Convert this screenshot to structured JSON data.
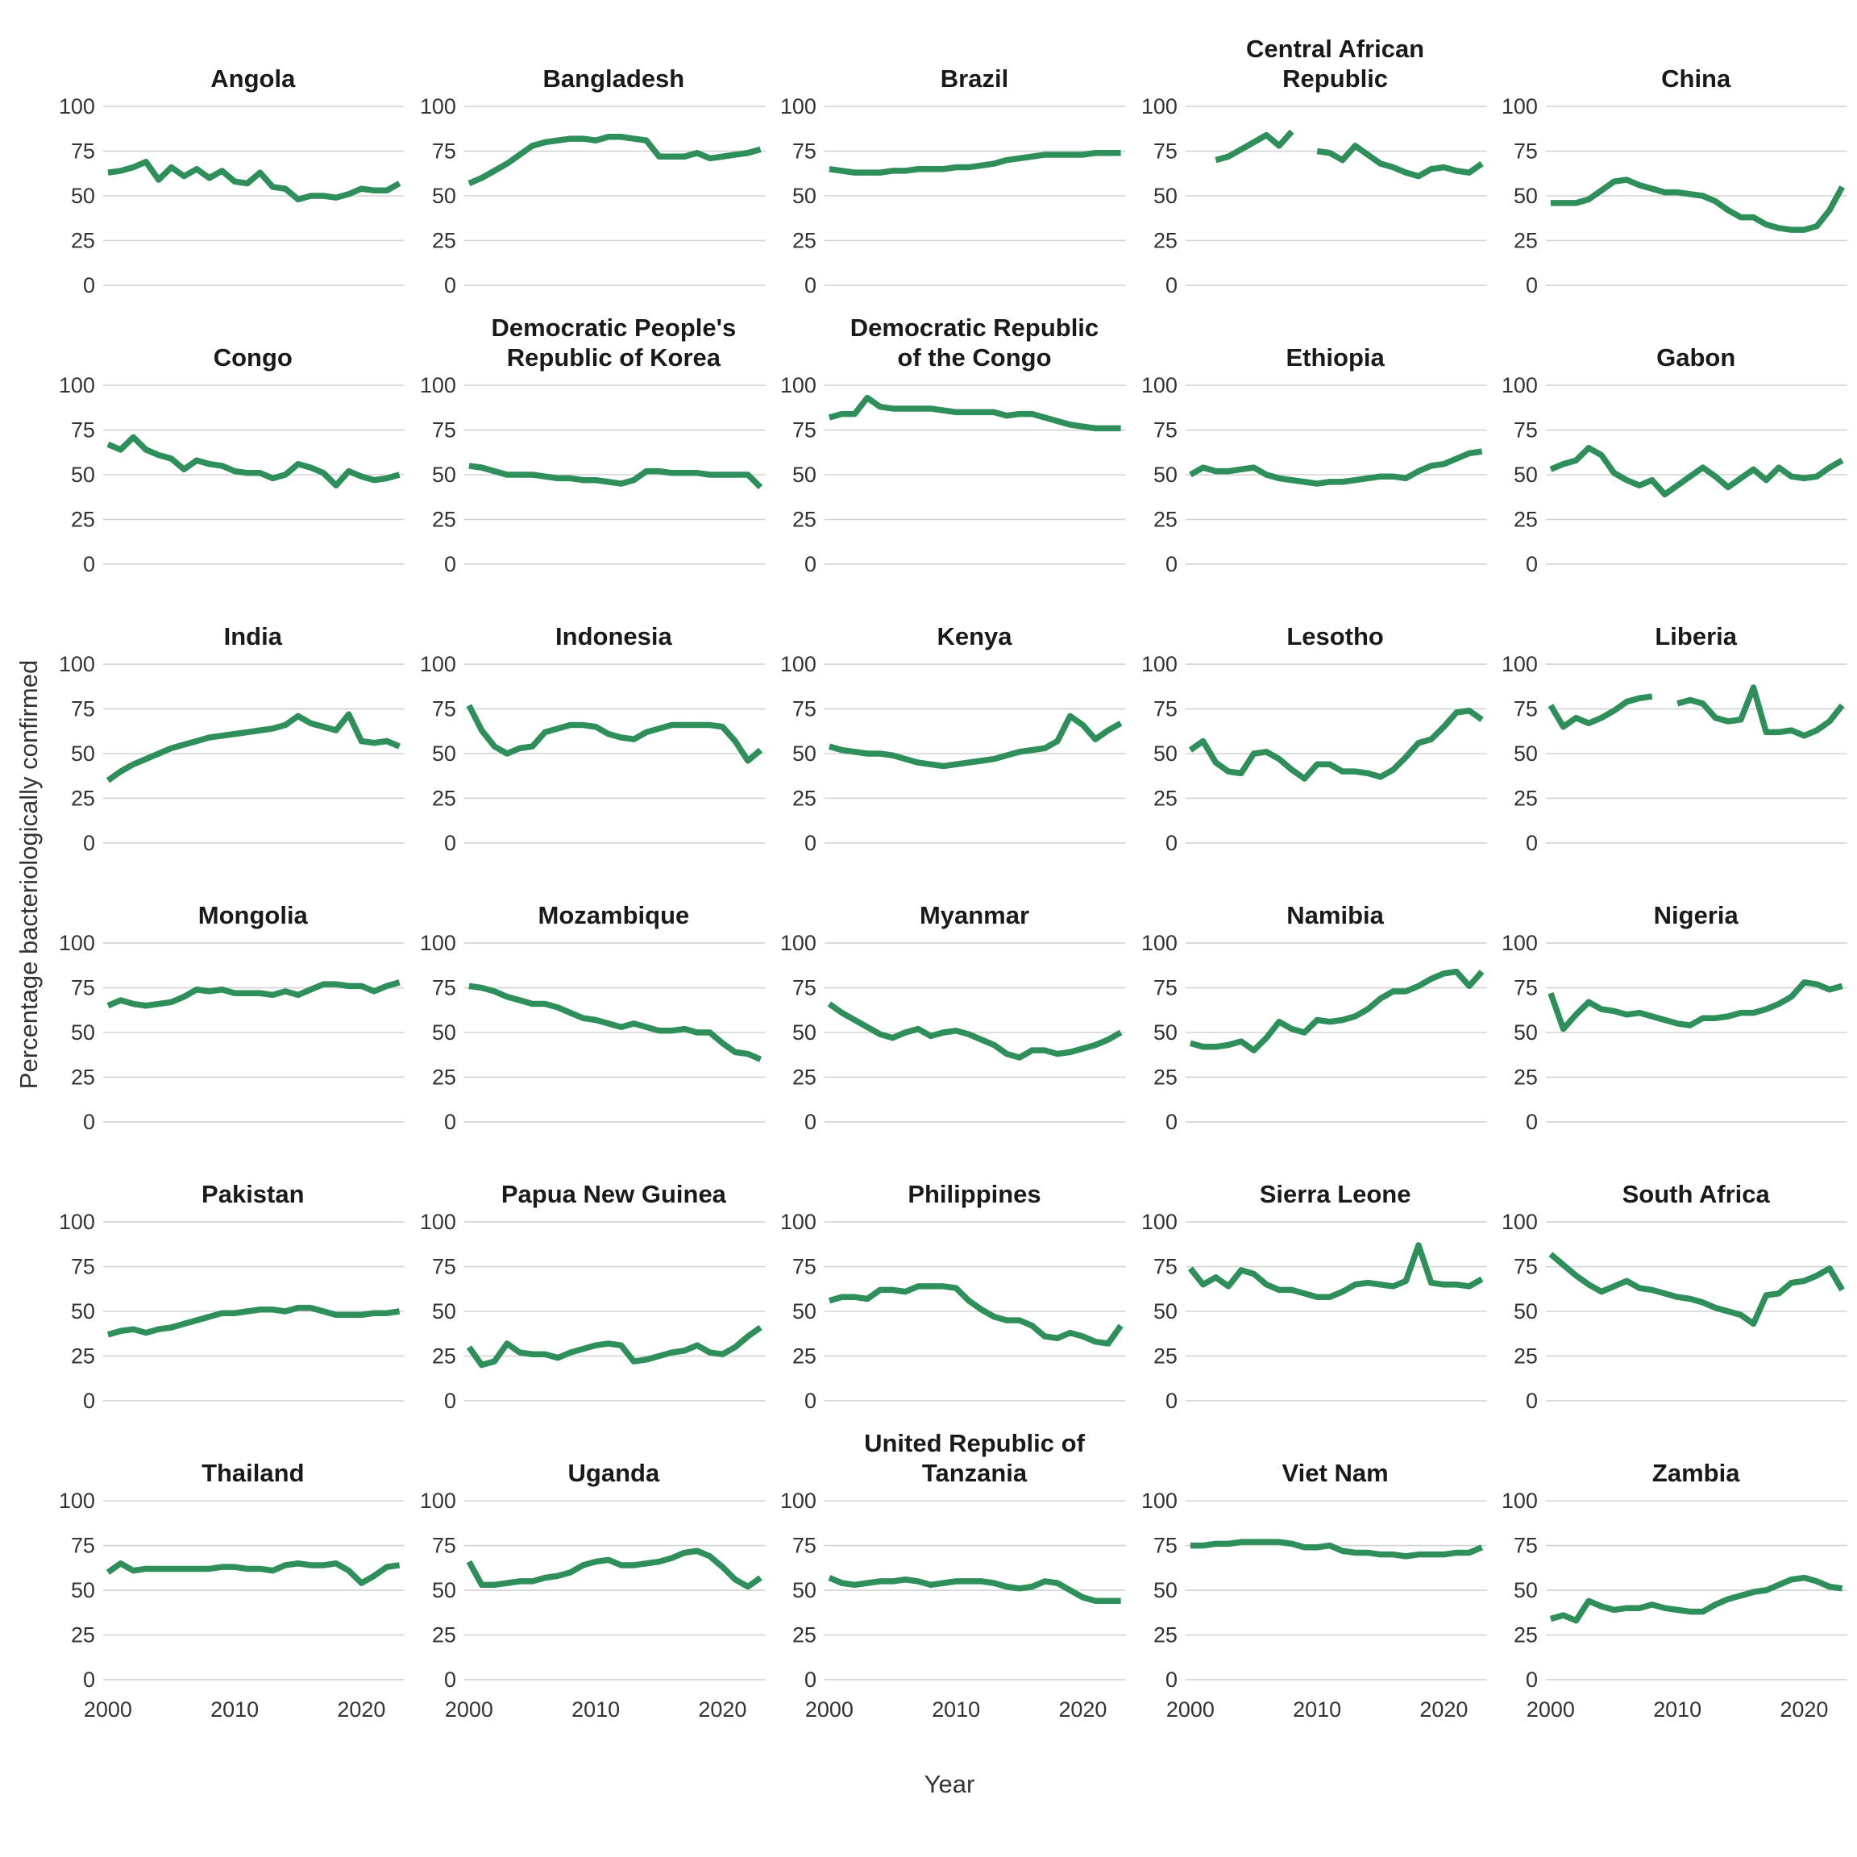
{
  "chart_data": {
    "type": "line",
    "title": "",
    "xlabel": "Year",
    "ylabel": "Percentage bacteriologically confirmed",
    "xlim": [
      2000,
      2023
    ],
    "ylim": [
      0,
      100
    ],
    "x_ticks": [
      2000,
      2010,
      2020
    ],
    "y_ticks": [
      0,
      25,
      50,
      75,
      100
    ],
    "grid": "horizontal",
    "legend": "none",
    "cols": 5,
    "line_color": "#2e8f5b",
    "grid_color": "#d3d3d3",
    "tick_color": "#333333",
    "title_color": "#1a1a1a",
    "years": [
      2000,
      2001,
      2002,
      2003,
      2004,
      2005,
      2006,
      2007,
      2008,
      2009,
      2010,
      2011,
      2012,
      2013,
      2014,
      2015,
      2016,
      2017,
      2018,
      2019,
      2020,
      2021,
      2022,
      2023
    ],
    "facets": [
      {
        "name": "Angola",
        "values": [
          63,
          64,
          66,
          69,
          59,
          66,
          61,
          65,
          60,
          64,
          58,
          57,
          63,
          55,
          54,
          48,
          50,
          50,
          49,
          51,
          54,
          53,
          53,
          57
        ]
      },
      {
        "name": "Bangladesh",
        "values": [
          57,
          60,
          64,
          68,
          73,
          78,
          80,
          81,
          82,
          82,
          81,
          83,
          83,
          82,
          81,
          72,
          72,
          72,
          74,
          71,
          72,
          73,
          74,
          76
        ]
      },
      {
        "name": "Brazil",
        "values": [
          65,
          64,
          63,
          63,
          63,
          64,
          64,
          65,
          65,
          65,
          66,
          66,
          67,
          68,
          70,
          71,
          72,
          73,
          73,
          73,
          73,
          74,
          74,
          74
        ]
      },
      {
        "name": "Central African Republic",
        "values": [
          null,
          null,
          70,
          72,
          76,
          80,
          84,
          78,
          86,
          null,
          75,
          74,
          70,
          78,
          73,
          68,
          66,
          63,
          61,
          65,
          66,
          64,
          63,
          68
        ]
      },
      {
        "name": "China",
        "values": [
          46,
          46,
          46,
          48,
          53,
          58,
          59,
          56,
          54,
          52,
          52,
          51,
          50,
          47,
          42,
          38,
          38,
          34,
          32,
          31,
          31,
          33,
          42,
          55
        ]
      },
      {
        "name": "Congo",
        "values": [
          67,
          64,
          71,
          64,
          61,
          59,
          53,
          58,
          56,
          55,
          52,
          51,
          51,
          48,
          50,
          56,
          54,
          51,
          44,
          52,
          49,
          47,
          48,
          50
        ]
      },
      {
        "name": "Democratic People's Republic of Korea",
        "values": [
          55,
          54,
          52,
          50,
          50,
          50,
          49,
          48,
          48,
          47,
          47,
          46,
          45,
          47,
          52,
          52,
          51,
          51,
          51,
          50,
          50,
          50,
          50,
          43
        ]
      },
      {
        "name": "Democratic Republic of the Congo",
        "values": [
          82,
          84,
          84,
          93,
          88,
          87,
          87,
          87,
          87,
          86,
          85,
          85,
          85,
          85,
          83,
          84,
          84,
          82,
          80,
          78,
          77,
          76,
          76,
          76
        ]
      },
      {
        "name": "Ethiopia",
        "values": [
          50,
          54,
          52,
          52,
          53,
          54,
          50,
          48,
          47,
          46,
          45,
          46,
          46,
          47,
          48,
          49,
          49,
          48,
          52,
          55,
          56,
          59,
          62,
          63
        ]
      },
      {
        "name": "Gabon",
        "values": [
          53,
          56,
          58,
          65,
          61,
          51,
          47,
          44,
          47,
          39,
          44,
          49,
          54,
          49,
          43,
          48,
          53,
          47,
          54,
          49,
          48,
          49,
          54,
          58
        ]
      },
      {
        "name": "India",
        "values": [
          35,
          40,
          44,
          47,
          50,
          53,
          55,
          57,
          59,
          60,
          61,
          62,
          63,
          64,
          66,
          71,
          67,
          65,
          63,
          72,
          57,
          56,
          57,
          54
        ]
      },
      {
        "name": "Indonesia",
        "values": [
          77,
          63,
          54,
          50,
          53,
          54,
          62,
          64,
          66,
          66,
          65,
          61,
          59,
          58,
          62,
          64,
          66,
          66,
          66,
          66,
          65,
          57,
          46,
          52
        ]
      },
      {
        "name": "Kenya",
        "values": [
          54,
          52,
          51,
          50,
          50,
          49,
          47,
          45,
          44,
          43,
          44,
          45,
          46,
          47,
          49,
          51,
          52,
          53,
          57,
          71,
          66,
          58,
          63,
          67
        ]
      },
      {
        "name": "Lesotho",
        "values": [
          52,
          57,
          45,
          40,
          39,
          50,
          51,
          47,
          41,
          36,
          44,
          44,
          40,
          40,
          39,
          37,
          41,
          48,
          56,
          58,
          65,
          73,
          74,
          69
        ]
      },
      {
        "name": "Liberia",
        "values": [
          77,
          65,
          70,
          67,
          70,
          74,
          79,
          81,
          82,
          null,
          78,
          80,
          78,
          70,
          68,
          69,
          87,
          62,
          62,
          63,
          60,
          63,
          68,
          77
        ]
      },
      {
        "name": "Mongolia",
        "values": [
          65,
          68,
          66,
          65,
          66,
          67,
          70,
          74,
          73,
          74,
          72,
          72,
          72,
          71,
          73,
          71,
          74,
          77,
          77,
          76,
          76,
          73,
          76,
          78
        ]
      },
      {
        "name": "Mozambique",
        "values": [
          76,
          75,
          73,
          70,
          68,
          66,
          66,
          64,
          61,
          58,
          57,
          55,
          53,
          55,
          53,
          51,
          51,
          52,
          50,
          50,
          44,
          39,
          38,
          35
        ]
      },
      {
        "name": "Myanmar",
        "values": [
          66,
          61,
          57,
          53,
          49,
          47,
          50,
          52,
          48,
          50,
          51,
          49,
          46,
          43,
          38,
          36,
          40,
          40,
          38,
          39,
          41,
          43,
          46,
          50
        ]
      },
      {
        "name": "Namibia",
        "values": [
          44,
          42,
          42,
          43,
          45,
          40,
          47,
          56,
          52,
          50,
          57,
          56,
          57,
          59,
          63,
          69,
          73,
          73,
          76,
          80,
          83,
          84,
          76,
          84
        ]
      },
      {
        "name": "Nigeria",
        "values": [
          72,
          52,
          60,
          67,
          63,
          62,
          60,
          61,
          59,
          57,
          55,
          54,
          58,
          58,
          59,
          61,
          61,
          63,
          66,
          70,
          78,
          77,
          74,
          76
        ]
      },
      {
        "name": "Pakistan",
        "values": [
          37,
          39,
          40,
          38,
          40,
          41,
          43,
          45,
          47,
          49,
          49,
          50,
          51,
          51,
          50,
          52,
          52,
          50,
          48,
          48,
          48,
          49,
          49,
          50
        ]
      },
      {
        "name": "Papua New Guinea",
        "values": [
          30,
          20,
          22,
          32,
          27,
          26,
          26,
          24,
          27,
          29,
          31,
          32,
          31,
          22,
          23,
          25,
          27,
          28,
          31,
          27,
          26,
          30,
          36,
          41
        ]
      },
      {
        "name": "Philippines",
        "values": [
          56,
          58,
          58,
          57,
          62,
          62,
          61,
          64,
          64,
          64,
          63,
          56,
          51,
          47,
          45,
          45,
          42,
          36,
          35,
          38,
          36,
          33,
          32,
          42
        ]
      },
      {
        "name": "Sierra Leone",
        "values": [
          74,
          65,
          69,
          64,
          73,
          71,
          65,
          62,
          62,
          60,
          58,
          58,
          61,
          65,
          66,
          65,
          64,
          67,
          87,
          66,
          65,
          65,
          64,
          68
        ]
      },
      {
        "name": "South Africa",
        "values": [
          82,
          76,
          70,
          65,
          61,
          64,
          67,
          63,
          62,
          60,
          58,
          57,
          55,
          52,
          50,
          48,
          43,
          59,
          60,
          66,
          67,
          70,
          74,
          62
        ]
      },
      {
        "name": "Thailand",
        "values": [
          60,
          65,
          61,
          62,
          62,
          62,
          62,
          62,
          62,
          63,
          63,
          62,
          62,
          61,
          64,
          65,
          64,
          64,
          65,
          61,
          54,
          58,
          63,
          64
        ]
      },
      {
        "name": "Uganda",
        "values": [
          66,
          53,
          53,
          54,
          55,
          55,
          57,
          58,
          60,
          64,
          66,
          67,
          64,
          64,
          65,
          66,
          68,
          71,
          72,
          69,
          63,
          56,
          52,
          57
        ]
      },
      {
        "name": "United Republic of Tanzania",
        "values": [
          57,
          54,
          53,
          54,
          55,
          55,
          56,
          55,
          53,
          54,
          55,
          55,
          55,
          54,
          52,
          51,
          52,
          55,
          54,
          50,
          46,
          44,
          44,
          44
        ]
      },
      {
        "name": "Viet Nam",
        "values": [
          75,
          75,
          76,
          76,
          77,
          77,
          77,
          77,
          76,
          74,
          74,
          75,
          72,
          71,
          71,
          70,
          70,
          69,
          70,
          70,
          70,
          71,
          71,
          74
        ]
      },
      {
        "name": "Zambia",
        "values": [
          34,
          36,
          33,
          44,
          41,
          39,
          40,
          40,
          42,
          40,
          39,
          38,
          38,
          42,
          45,
          47,
          49,
          50,
          53,
          56,
          57,
          55,
          52,
          51
        ]
      }
    ]
  }
}
